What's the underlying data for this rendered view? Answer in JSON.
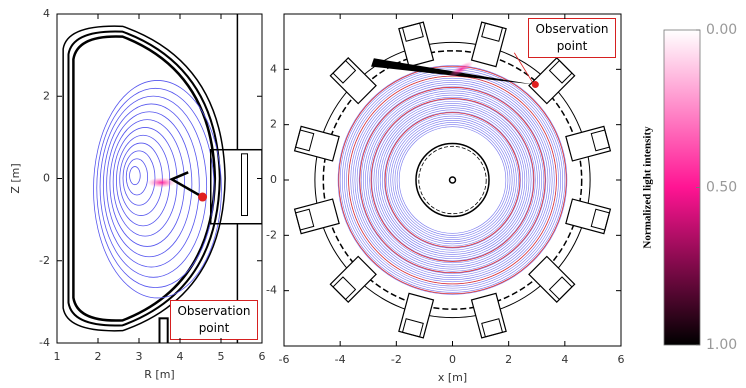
{
  "chart_data": [
    {
      "type": "contour",
      "xlim": [
        1,
        6
      ],
      "ylim": [
        -4,
        4
      ],
      "xticks": [
        1,
        2,
        3,
        4,
        5,
        6
      ],
      "yticks": [
        -4,
        -2,
        0,
        2,
        4
      ],
      "xlabel": "R [m]",
      "ylabel": "Z [m]",
      "annotation": "Observation point"
    },
    {
      "type": "contour",
      "xlim": [
        -6,
        6
      ],
      "ylim": [
        -6,
        6
      ],
      "xticks": [
        -6,
        -4,
        -2,
        0,
        2,
        4,
        6
      ],
      "yticks": [
        -4,
        -2,
        0,
        2,
        4
      ],
      "xlabel": "x [m]",
      "annotation": "Observation point"
    },
    {
      "type": "colorbar",
      "label": "Normalized light intensity",
      "ylim": [
        0,
        1
      ],
      "yticks": [
        {
          "value": 0,
          "label": "0.00"
        },
        {
          "value": 0.5,
          "label": "0.50"
        },
        {
          "value": 1,
          "label": "1.00"
        }
      ],
      "colors": [
        "#ffffff",
        "#ff1493",
        "#000000"
      ]
    }
  ]
}
